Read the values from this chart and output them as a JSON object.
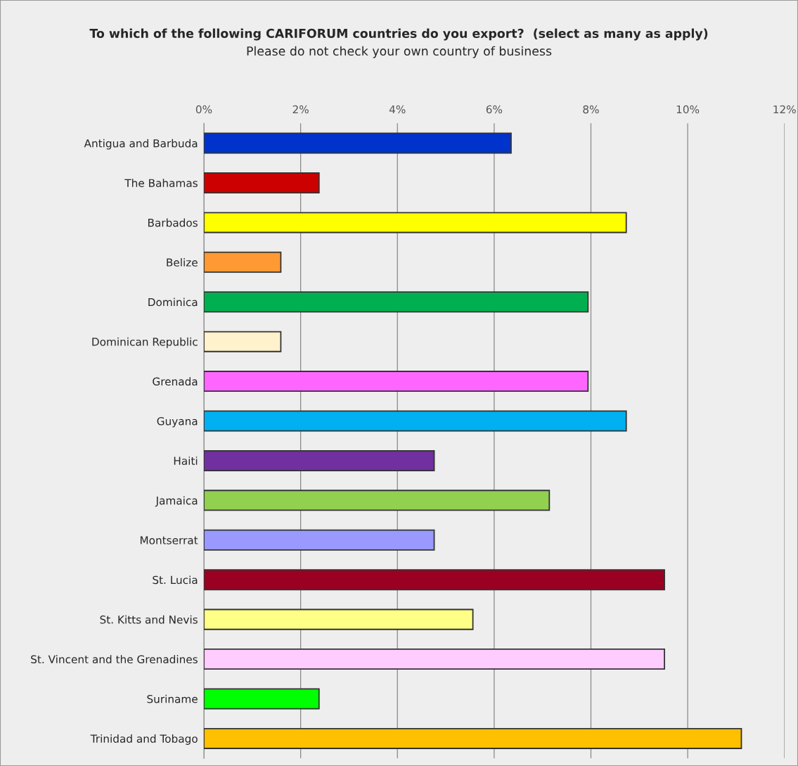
{
  "chart_data": {
    "type": "bar",
    "orientation": "horizontal",
    "title": "To which of the following CARIFORUM countries do you export?  (select as many as apply)",
    "subtitle": "Please do not check your own country of business",
    "categories": [
      "Antigua and Barbuda",
      "The Bahamas",
      "Barbados",
      "Belize",
      "Dominica",
      "Dominican Republic",
      "Grenada",
      "Guyana",
      "Haiti",
      "Jamaica",
      "Montserrat",
      "St. Lucia",
      "St. Kitts and Nevis",
      "St. Vincent and the Grenadines",
      "Suriname",
      "Trinidad and Tobago"
    ],
    "values": [
      6.35,
      2.38,
      8.73,
      1.59,
      7.94,
      1.59,
      7.94,
      8.73,
      4.76,
      7.14,
      4.76,
      9.52,
      5.56,
      9.52,
      2.38,
      11.11
    ],
    "colors": [
      "#0033cc",
      "#cc0000",
      "#ffff00",
      "#ff9933",
      "#00b050",
      "#fff2cc",
      "#ff66ff",
      "#00b0f0",
      "#7030a0",
      "#92d050",
      "#9999ff",
      "#990021",
      "#ffff88",
      "#ffccff",
      "#00ff00",
      "#ffc000"
    ],
    "xlim": [
      0,
      12
    ],
    "xticks": [
      {
        "value": 0,
        "label": "0%"
      },
      {
        "value": 2,
        "label": "2%"
      },
      {
        "value": 4,
        "label": "4%"
      },
      {
        "value": 6,
        "label": "6%"
      },
      {
        "value": 8,
        "label": "8%"
      },
      {
        "value": 10,
        "label": "10%"
      },
      {
        "value": 12,
        "label": "12%"
      }
    ],
    "grid": "x",
    "legend": false
  }
}
